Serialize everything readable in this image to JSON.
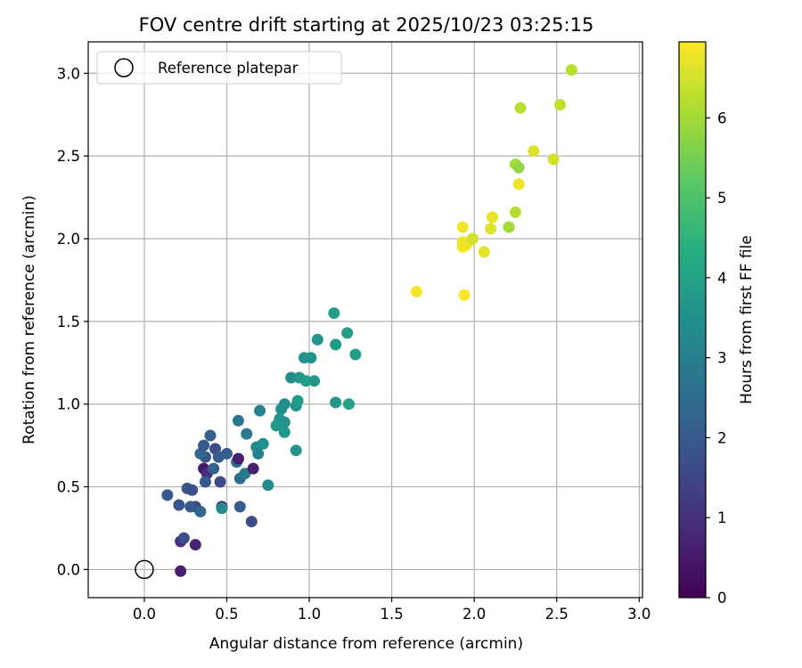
{
  "chart_data": {
    "type": "scatter",
    "title": "FOV centre drift starting at 2025/10/23 03:25:15",
    "xlabel": "Angular distance from reference (arcmin)",
    "ylabel": "Rotation from reference (arcmin)",
    "xlim": [
      -0.34,
      3.02
    ],
    "ylim": [
      -0.17,
      3.19
    ],
    "xticks": [
      "0.0",
      "0.5",
      "1.0",
      "1.5",
      "2.0",
      "2.5",
      "3.0"
    ],
    "yticks": [
      "0.0",
      "0.5",
      "1.0",
      "1.5",
      "2.0",
      "2.5",
      "3.0"
    ],
    "grid": true,
    "legend": {
      "location": "top-left",
      "label": "Reference platepar",
      "reference_point": [
        0.0,
        0.0
      ]
    },
    "colorbar": {
      "label": "Hours from first FF file",
      "colormap": "viridis",
      "range": [
        0,
        6.95
      ],
      "ticks": [
        "0",
        "1",
        "2",
        "3",
        "4",
        "5",
        "6"
      ]
    },
    "points": [
      [
        0.22,
        -0.01,
        0.6
      ],
      [
        0.22,
        0.17,
        0.9
      ],
      [
        0.31,
        0.15,
        0.7
      ],
      [
        0.24,
        0.19,
        1.7
      ],
      [
        0.14,
        0.45,
        1.9
      ],
      [
        0.21,
        0.39,
        1.8
      ],
      [
        0.26,
        0.49,
        1.9
      ],
      [
        0.29,
        0.48,
        1.7
      ],
      [
        0.31,
        0.38,
        1.4
      ],
      [
        0.28,
        0.38,
        1.9
      ],
      [
        0.34,
        0.35,
        2.3
      ],
      [
        0.36,
        0.61,
        0.5
      ],
      [
        0.38,
        0.58,
        0.9
      ],
      [
        0.37,
        0.53,
        2.0
      ],
      [
        0.42,
        0.61,
        2.2
      ],
      [
        0.37,
        0.68,
        1.8
      ],
      [
        0.34,
        0.7,
        2.3
      ],
      [
        0.36,
        0.75,
        2.0
      ],
      [
        0.4,
        0.81,
        2.1
      ],
      [
        0.43,
        0.73,
        1.7
      ],
      [
        0.45,
        0.68,
        2.0
      ],
      [
        0.46,
        0.53,
        1.6
      ],
      [
        0.47,
        0.38,
        0.8
      ],
      [
        0.47,
        0.37,
        3.3
      ],
      [
        0.5,
        0.7,
        2.1
      ],
      [
        0.56,
        0.65,
        2.5
      ],
      [
        0.57,
        0.67,
        0.6
      ],
      [
        0.57,
        0.9,
        2.8
      ],
      [
        0.58,
        0.55,
        2.5
      ],
      [
        0.58,
        0.38,
        2.0
      ],
      [
        0.61,
        0.58,
        2.9
      ],
      [
        0.62,
        0.82,
        2.9
      ],
      [
        0.65,
        0.29,
        1.6
      ],
      [
        0.66,
        0.61,
        0.6
      ],
      [
        0.68,
        0.74,
        3.4
      ],
      [
        0.69,
        0.7,
        3.1
      ],
      [
        0.7,
        0.96,
        3.1
      ],
      [
        0.72,
        0.76,
        3.5
      ],
      [
        0.75,
        0.51,
        3.3
      ],
      [
        0.8,
        0.87,
        3.8
      ],
      [
        0.82,
        0.91,
        3.6
      ],
      [
        0.83,
        0.97,
        3.5
      ],
      [
        0.85,
        1.0,
        3.4
      ],
      [
        0.85,
        0.89,
        3.6
      ],
      [
        0.85,
        0.83,
        3.7
      ],
      [
        0.89,
        1.16,
        3.3
      ],
      [
        0.92,
        0.99,
        3.6
      ],
      [
        0.92,
        0.72,
        3.6
      ],
      [
        0.93,
        1.02,
        3.8
      ],
      [
        0.94,
        1.16,
        3.7
      ],
      [
        0.97,
        1.28,
        3.5
      ],
      [
        0.98,
        1.14,
        3.8
      ],
      [
        1.01,
        1.28,
        3.6
      ],
      [
        1.03,
        1.14,
        3.7
      ],
      [
        1.05,
        1.39,
        3.6
      ],
      [
        1.15,
        1.55,
        3.9
      ],
      [
        1.16,
        1.01,
        3.7
      ],
      [
        1.16,
        1.36,
        3.8
      ],
      [
        1.23,
        1.43,
        3.9
      ],
      [
        1.24,
        1.0,
        4.0
      ],
      [
        1.28,
        1.3,
        3.9
      ],
      [
        1.65,
        1.68,
        6.9
      ],
      [
        1.93,
        1.98,
        6.8
      ],
      [
        1.93,
        1.95,
        6.9
      ],
      [
        1.93,
        2.07,
        6.8
      ],
      [
        1.94,
        1.66,
        6.9
      ],
      [
        1.95,
        1.96,
        6.8
      ],
      [
        1.98,
        1.99,
        6.7
      ],
      [
        1.99,
        2.0,
        6.5
      ],
      [
        2.06,
        1.92,
        6.7
      ],
      [
        2.1,
        2.06,
        6.6
      ],
      [
        2.11,
        2.13,
        6.7
      ],
      [
        2.21,
        2.07,
        6.0
      ],
      [
        2.25,
        2.16,
        6.2
      ],
      [
        2.25,
        2.45,
        6.0
      ],
      [
        2.27,
        2.43,
        5.8
      ],
      [
        2.27,
        2.33,
        6.8
      ],
      [
        2.28,
        2.79,
        6.2
      ],
      [
        2.36,
        2.53,
        6.6
      ],
      [
        2.48,
        2.48,
        6.5
      ],
      [
        2.52,
        2.81,
        6.3
      ],
      [
        2.59,
        3.02,
        6.2
      ]
    ]
  }
}
